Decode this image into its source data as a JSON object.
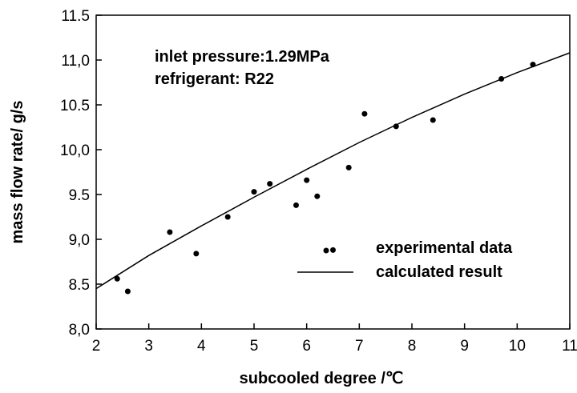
{
  "chart_data": {
    "type": "scatter",
    "title": "",
    "xlabel": "subcooled degree /℃",
    "ylabel": "mass flow rate/ g/s",
    "xlim": [
      2,
      11
    ],
    "ylim": [
      8.0,
      11.5
    ],
    "grid": false,
    "x_ticks": [
      "2",
      "3",
      "4",
      "5",
      "6",
      "7",
      "8",
      "9",
      "10",
      "11"
    ],
    "y_ticks": [
      "8,0",
      "8.5",
      "9,0",
      "9.5",
      "10,0",
      "10.5",
      "11,0",
      "11.5"
    ],
    "annotations": [
      "inlet pressure:1.29MPa",
      "refrigerant: R22"
    ],
    "legend_position": "bottom-right",
    "series": [
      {
        "name": "experimental data",
        "kind": "scatter",
        "color": "#000000",
        "points": [
          {
            "x": 2.4,
            "y": 8.56
          },
          {
            "x": 2.6,
            "y": 8.42
          },
          {
            "x": 3.4,
            "y": 9.08
          },
          {
            "x": 3.9,
            "y": 8.84
          },
          {
            "x": 4.5,
            "y": 9.25
          },
          {
            "x": 5.0,
            "y": 9.53
          },
          {
            "x": 5.3,
            "y": 9.62
          },
          {
            "x": 5.8,
            "y": 9.38
          },
          {
            "x": 6.0,
            "y": 9.66
          },
          {
            "x": 6.2,
            "y": 9.48
          },
          {
            "x": 6.5,
            "y": 8.88
          },
          {
            "x": 6.8,
            "y": 9.8
          },
          {
            "x": 7.1,
            "y": 10.4
          },
          {
            "x": 7.7,
            "y": 10.26
          },
          {
            "x": 8.4,
            "y": 10.33
          },
          {
            "x": 9.7,
            "y": 10.79
          },
          {
            "x": 10.3,
            "y": 10.95
          }
        ]
      },
      {
        "name": "calculated result",
        "kind": "line",
        "color": "#000000",
        "points": [
          {
            "x": 2.0,
            "y": 8.45
          },
          {
            "x": 3.0,
            "y": 8.82
          },
          {
            "x": 4.0,
            "y": 9.15
          },
          {
            "x": 5.0,
            "y": 9.47
          },
          {
            "x": 6.0,
            "y": 9.78
          },
          {
            "x": 7.0,
            "y": 10.08
          },
          {
            "x": 8.0,
            "y": 10.36
          },
          {
            "x": 9.0,
            "y": 10.62
          },
          {
            "x": 10.0,
            "y": 10.86
          },
          {
            "x": 11.0,
            "y": 11.08
          }
        ]
      }
    ]
  }
}
